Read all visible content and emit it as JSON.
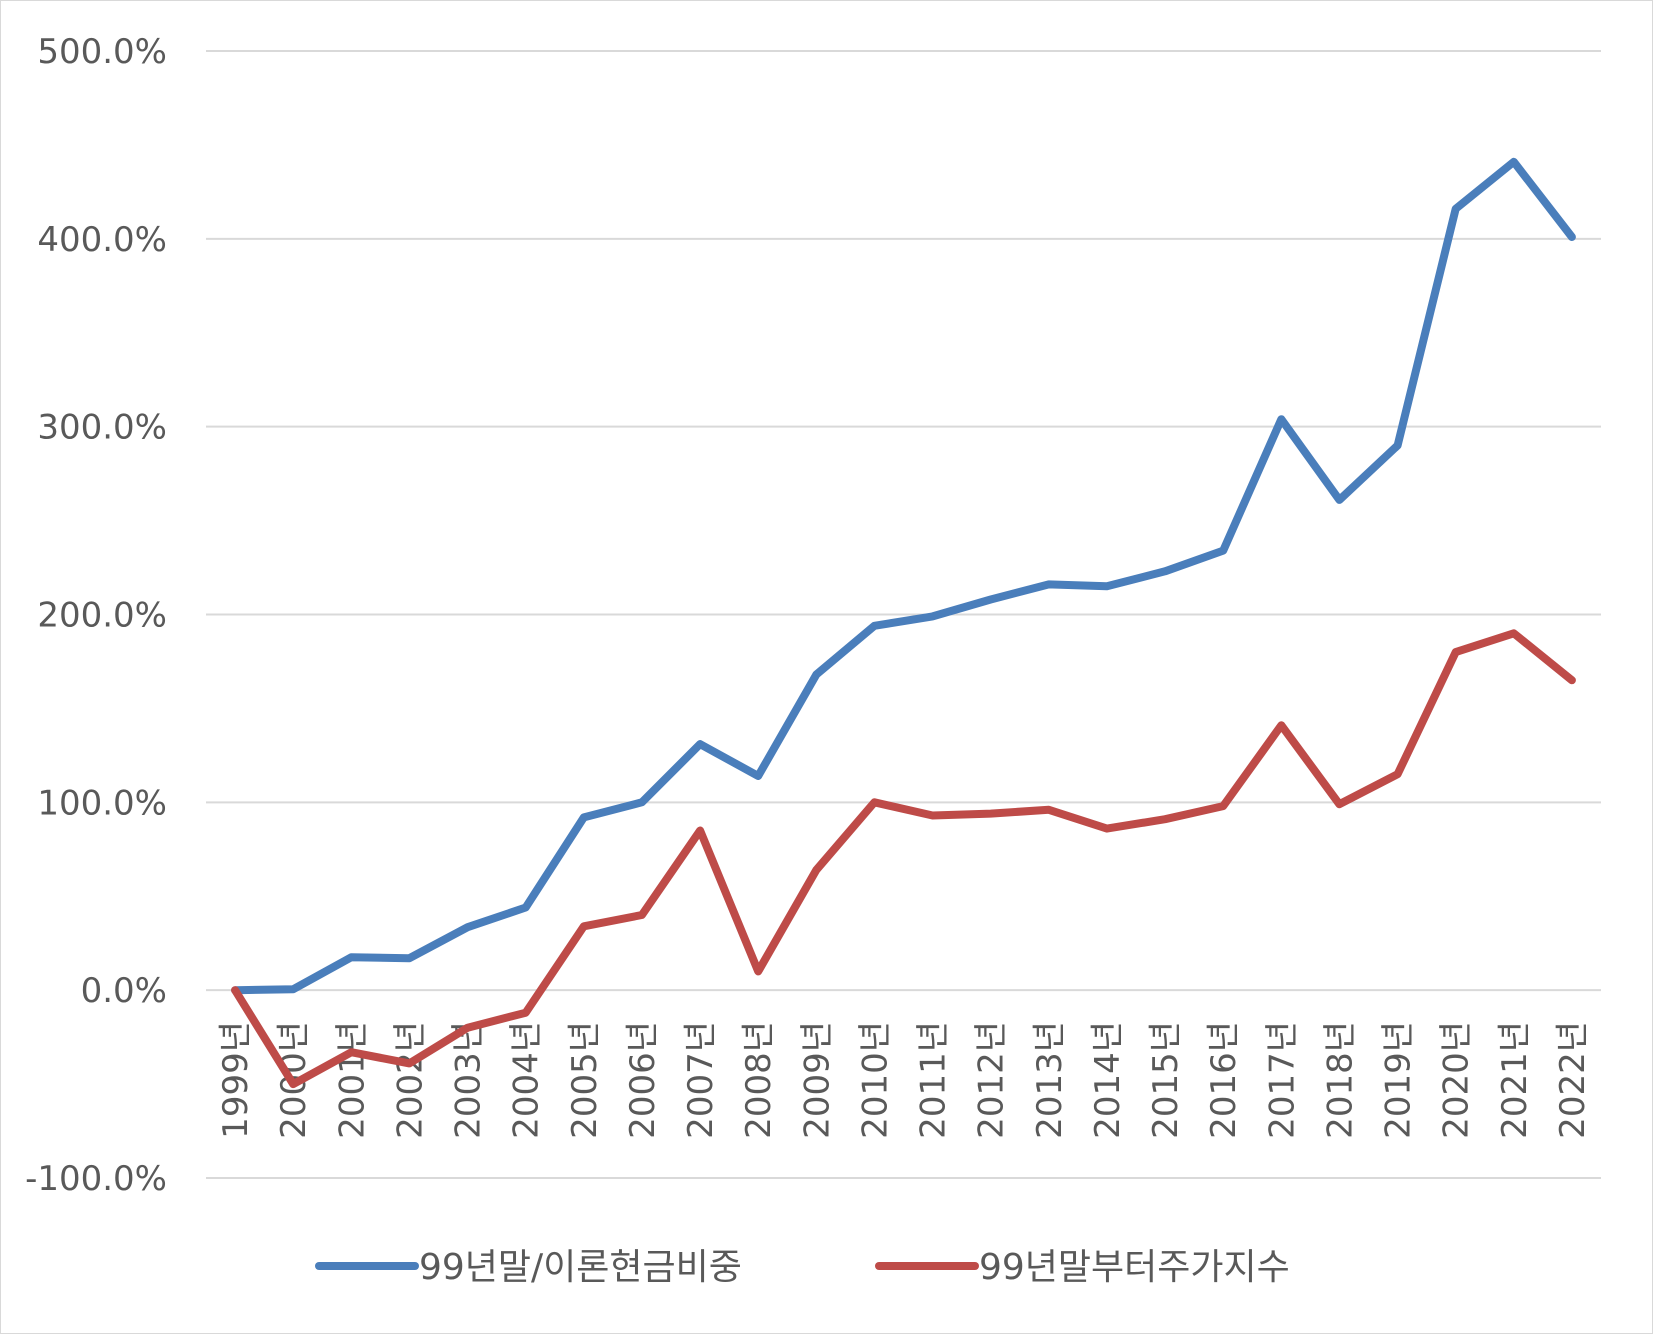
{
  "chart_data": {
    "type": "line",
    "title": "",
    "xlabel": "",
    "ylabel": "",
    "ylim": [
      -100,
      500
    ],
    "y_ticks": [
      "500.0%",
      "400.0%",
      "300.0%",
      "200.0%",
      "100.0%",
      "0.0%",
      "-100.0%"
    ],
    "y_tick_values": [
      500,
      400,
      300,
      200,
      100,
      0,
      -100
    ],
    "categories": [
      "1999년",
      "2000년",
      "2001년",
      "2002년",
      "2003년",
      "2004년",
      "2005년",
      "2006년",
      "2007년",
      "2008년",
      "2009년",
      "2010년",
      "2011년",
      "2012년",
      "2013년",
      "2014년",
      "2015년",
      "2016년",
      "2017년",
      "2018년",
      "2019년",
      "2020년",
      "2021년",
      "2022년"
    ],
    "series": [
      {
        "name": "99년말/이론현금비중",
        "color": "#4a7ebb",
        "values": [
          0,
          0.5,
          17.5,
          17,
          33.5,
          44,
          92,
          100,
          131,
          114,
          168,
          194,
          199,
          208,
          216,
          215,
          223,
          234,
          304,
          261,
          290,
          416,
          441,
          401
        ]
      },
      {
        "name": "99년말부터주가지수",
        "color": "#be4b48",
        "values": [
          0,
          -50,
          -33,
          -39,
          -20,
          -12,
          34,
          40,
          85,
          10,
          64,
          100,
          93,
          94,
          96,
          86,
          91,
          98,
          141,
          99,
          115,
          180,
          190,
          165
        ]
      }
    ],
    "grid": true,
    "legend": "bottom"
  }
}
